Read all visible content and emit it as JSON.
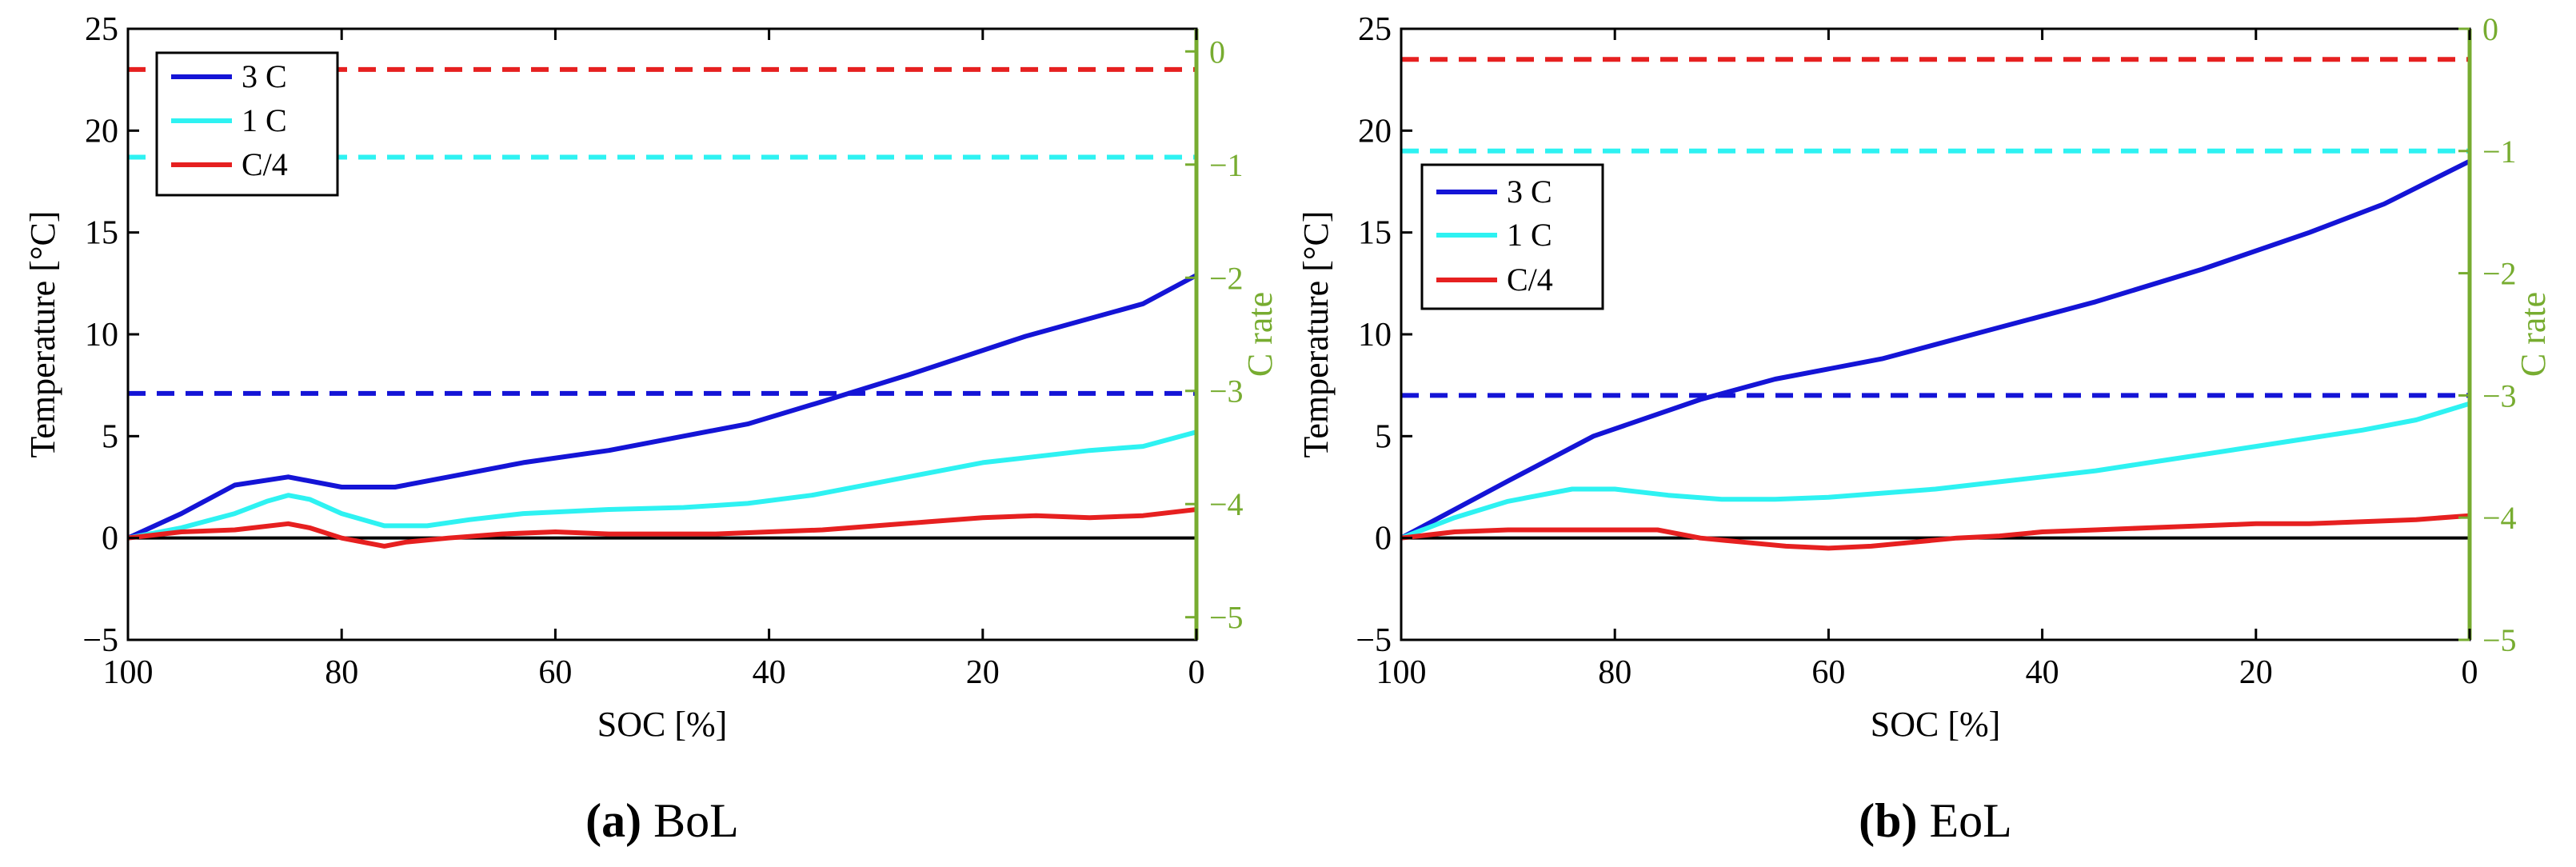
{
  "colors": {
    "axis": "#000000",
    "secondary_axis": "#77AC30",
    "c3": "#1414D6",
    "c1": "#2EF2F2",
    "cq": "#E62020",
    "zero_line": "#000000"
  },
  "chart_data": [
    {
      "panel": "a",
      "type": "line",
      "caption_letter": "(a)",
      "caption_text": "BoL",
      "xlabel": "SOC [%]",
      "ylabel": "Temperature [°C]",
      "y2label": "C rate",
      "xlim": [
        100,
        0
      ],
      "ylim": [
        -5,
        25
      ],
      "y2lim": [
        -5.2,
        0.2
      ],
      "xticks": [
        100,
        80,
        60,
        40,
        20,
        0
      ],
      "yticks": [
        -5,
        0,
        5,
        10,
        15,
        20,
        25
      ],
      "y2ticks": [
        0,
        -1,
        -2,
        -3,
        -4,
        -5
      ],
      "legend_position": "top-left",
      "series": [
        {
          "name": "3 C",
          "color_key": "c3",
          "x": [
            100,
            95,
            90,
            85,
            80,
            75,
            70,
            63,
            55,
            48,
            42,
            35,
            27,
            16,
            5,
            0
          ],
          "y": [
            0,
            1.2,
            2.6,
            3.0,
            2.5,
            2.5,
            3.0,
            3.7,
            4.3,
            5.0,
            5.6,
            6.7,
            8.0,
            9.9,
            11.5,
            12.9
          ]
        },
        {
          "name": "1 C",
          "color_key": "c1",
          "x": [
            100,
            95,
            90,
            87,
            85,
            83,
            80,
            76,
            72,
            68,
            63,
            55,
            48,
            42,
            36,
            30,
            25,
            20,
            15,
            10,
            5,
            0
          ],
          "y": [
            0,
            0.5,
            1.2,
            1.8,
            2.1,
            1.9,
            1.2,
            0.6,
            0.6,
            0.9,
            1.2,
            1.4,
            1.5,
            1.7,
            2.1,
            2.7,
            3.2,
            3.7,
            4.0,
            4.3,
            4.5,
            5.2
          ]
        },
        {
          "name": "C/4",
          "color_key": "cq",
          "x": [
            100,
            95,
            90,
            85,
            83,
            80,
            78,
            76,
            74,
            70,
            65,
            60,
            55,
            50,
            45,
            40,
            35,
            30,
            25,
            20,
            15,
            10,
            5,
            0
          ],
          "y": [
            0,
            0.3,
            0.4,
            0.7,
            0.5,
            0.0,
            -0.2,
            -0.4,
            -0.2,
            0.0,
            0.2,
            0.3,
            0.2,
            0.2,
            0.2,
            0.3,
            0.4,
            0.6,
            0.8,
            1.0,
            1.1,
            1.0,
            1.1,
            1.4
          ]
        }
      ],
      "reference_lines": [
        {
          "name": "3 C limit",
          "color_key": "c3",
          "y": 7.1
        },
        {
          "name": "1 C limit",
          "color_key": "c1",
          "y": 18.7
        },
        {
          "name": "C/4 limit",
          "color_key": "cq",
          "y": 23.0
        }
      ]
    },
    {
      "panel": "b",
      "type": "line",
      "caption_letter": "(b)",
      "caption_text": "EoL",
      "xlabel": "SOC [%]",
      "ylabel": "Temperature [°C]",
      "y2label": "C rate",
      "xlim": [
        100,
        0
      ],
      "ylim": [
        -5,
        25
      ],
      "y2lim": [
        -5,
        0
      ],
      "xticks": [
        100,
        80,
        60,
        40,
        20,
        0
      ],
      "yticks": [
        -5,
        0,
        5,
        10,
        15,
        20,
        25
      ],
      "y2ticks": [
        0,
        -1,
        -2,
        -3,
        -4,
        -5
      ],
      "legend_position": "upper-left",
      "series": [
        {
          "name": "3 C",
          "color_key": "c3",
          "x": [
            100,
            90,
            82,
            72,
            65,
            55,
            45,
            35,
            25,
            15,
            8,
            0
          ],
          "y": [
            0,
            2.8,
            5.0,
            6.8,
            7.8,
            8.8,
            10.2,
            11.6,
            13.2,
            15.0,
            16.4,
            18.5
          ]
        },
        {
          "name": "1 C",
          "color_key": "c1",
          "x": [
            100,
            95,
            90,
            84,
            80,
            75,
            70,
            65,
            60,
            55,
            50,
            45,
            40,
            35,
            30,
            25,
            20,
            15,
            10,
            5,
            0
          ],
          "y": [
            0,
            1.0,
            1.8,
            2.4,
            2.4,
            2.1,
            1.9,
            1.9,
            2.0,
            2.2,
            2.4,
            2.7,
            3.0,
            3.3,
            3.7,
            4.1,
            4.5,
            4.9,
            5.3,
            5.8,
            6.6
          ]
        },
        {
          "name": "C/4",
          "color_key": "cq",
          "x": [
            100,
            95,
            90,
            85,
            80,
            76,
            72,
            68,
            64,
            60,
            56,
            52,
            48,
            44,
            40,
            35,
            30,
            25,
            20,
            15,
            10,
            5,
            0
          ],
          "y": [
            0,
            0.3,
            0.4,
            0.4,
            0.4,
            0.4,
            0.0,
            -0.2,
            -0.4,
            -0.5,
            -0.4,
            -0.2,
            0.0,
            0.1,
            0.3,
            0.4,
            0.5,
            0.6,
            0.7,
            0.7,
            0.8,
            0.9,
            1.1
          ]
        }
      ],
      "reference_lines": [
        {
          "name": "3 C limit",
          "color_key": "c3",
          "y": 7.0
        },
        {
          "name": "1 C limit",
          "color_key": "c1",
          "y": 19.0
        },
        {
          "name": "C/4 limit",
          "color_key": "cq",
          "y": 23.5
        }
      ]
    }
  ]
}
